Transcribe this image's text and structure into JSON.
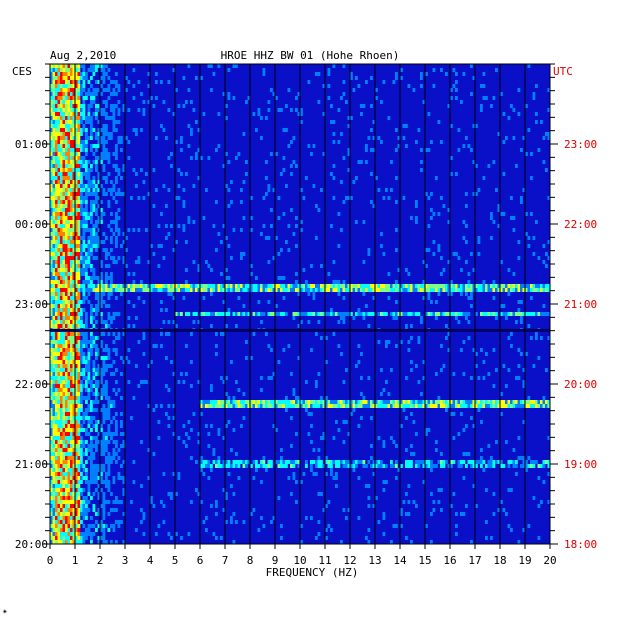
{
  "header": {
    "date": "Aug 2,2010",
    "station": "HROE HHZ BW 01 (Hohe Rhoen)"
  },
  "footer": {
    "mark": "✴"
  },
  "chart_data": {
    "type": "heatmap",
    "xlabel": "FREQUENCY (HZ)",
    "xlim": [
      0,
      20
    ],
    "x_ticks": [
      "0",
      "1",
      "2",
      "3",
      "4",
      "5",
      "6",
      "7",
      "8",
      "9",
      "10",
      "11",
      "12",
      "13",
      "14",
      "15",
      "16",
      "17",
      "18",
      "19",
      "20"
    ],
    "left_axis": {
      "label": "CES",
      "ticks": [
        {
          "label": "01:00",
          "hours_before_top": 1
        },
        {
          "label": "00:00",
          "hours_before_top": 2
        },
        {
          "label": "23:00",
          "hours_before_top": 3
        },
        {
          "label": "22:00",
          "hours_before_top": 4
        },
        {
          "label": "21:00",
          "hours_before_top": 5
        },
        {
          "label": "20:00",
          "hours_before_top": 6
        }
      ]
    },
    "right_axis": {
      "label": "UTC",
      "ticks": [
        {
          "label": "23:00",
          "hours_before_top": 1
        },
        {
          "label": "22:00",
          "hours_before_top": 2
        },
        {
          "label": "21:00",
          "hours_before_top": 3
        },
        {
          "label": "20:00",
          "hours_before_top": 4
        },
        {
          "label": "19:00",
          "hours_before_top": 5
        },
        {
          "label": "18:00",
          "hours_before_top": 6
        }
      ]
    },
    "time_span_hours": 6,
    "colormap": [
      "#00008b",
      "#0000ff",
      "#0080ff",
      "#00ffff",
      "#80ff80",
      "#ffff00",
      "#ff8000",
      "#ff0000"
    ],
    "background_color": "#0a10c8",
    "strong_band_hz": [
      0,
      1.2
    ],
    "horizontal_events": [
      {
        "hours_before_top": 2.78,
        "from_hz": 1.5,
        "to_hz": 20,
        "intensity": 0.55
      },
      {
        "hours_before_top": 3.1,
        "from_hz": 5,
        "to_hz": 20,
        "intensity": 0.45
      },
      {
        "hours_before_top": 4.22,
        "from_hz": 6,
        "to_hz": 20,
        "intensity": 0.55
      },
      {
        "hours_before_top": 4.98,
        "from_hz": 6,
        "to_hz": 20,
        "intensity": 0.4
      }
    ],
    "gap_hours_before_top": 3.33
  }
}
